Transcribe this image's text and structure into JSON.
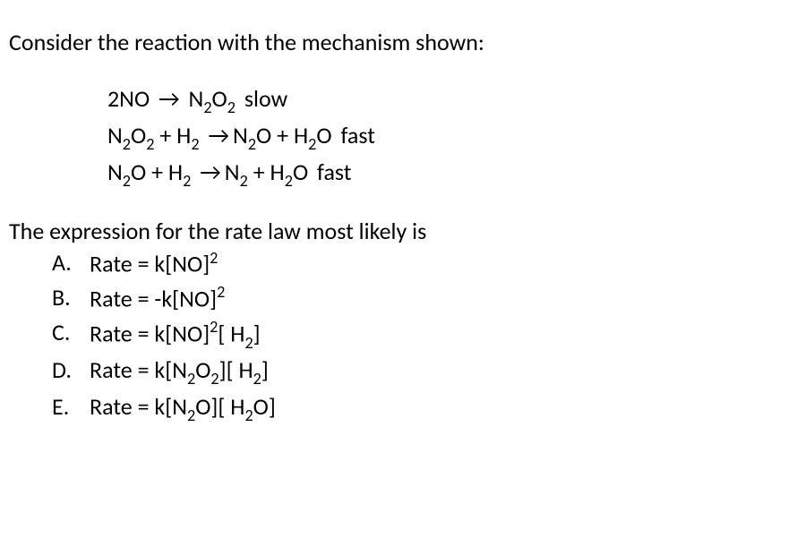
{
  "intro": "Consider the reaction with the mechanism shown:",
  "mech": {
    "step1": {
      "lhs": "2NO",
      "rhs_html": "N<sub>2</sub>O<sub>2</sub>",
      "rate": "slow"
    },
    "step2": {
      "lhs_html": "N<sub>2</sub>O<sub>2</sub> + H<sub>2</sub>",
      "rhs_html": "N<sub>2</sub>O + H<sub>2</sub>O",
      "rate": "fast"
    },
    "step3": {
      "lhs_html": "N<sub>2</sub>O + H<sub>2</sub>",
      "rhs_html": "N<sub>2</sub> + H<sub>2</sub>O",
      "rate": "fast"
    }
  },
  "question": "The expression for the rate law most likely is",
  "options": {
    "A": {
      "letter": "A.",
      "expr_html": "Rate = k[NO]<sup>2</sup>"
    },
    "B": {
      "letter": "B.",
      "expr_html": "Rate = -k[NO]<sup>2</sup>"
    },
    "C": {
      "letter": "C.",
      "expr_html": "Rate = k[NO]<sup>2</sup>[ H<sub>2</sub>]"
    },
    "D": {
      "letter": "D.",
      "expr_html": "Rate = k[N<sub>2</sub>O<sub>2</sub>][ H<sub>2</sub>]"
    },
    "E": {
      "letter": "E.",
      "expr_html": "Rate = k[N<sub>2</sub>O][ H<sub>2</sub>O]"
    }
  },
  "arrow_glyph": "→"
}
